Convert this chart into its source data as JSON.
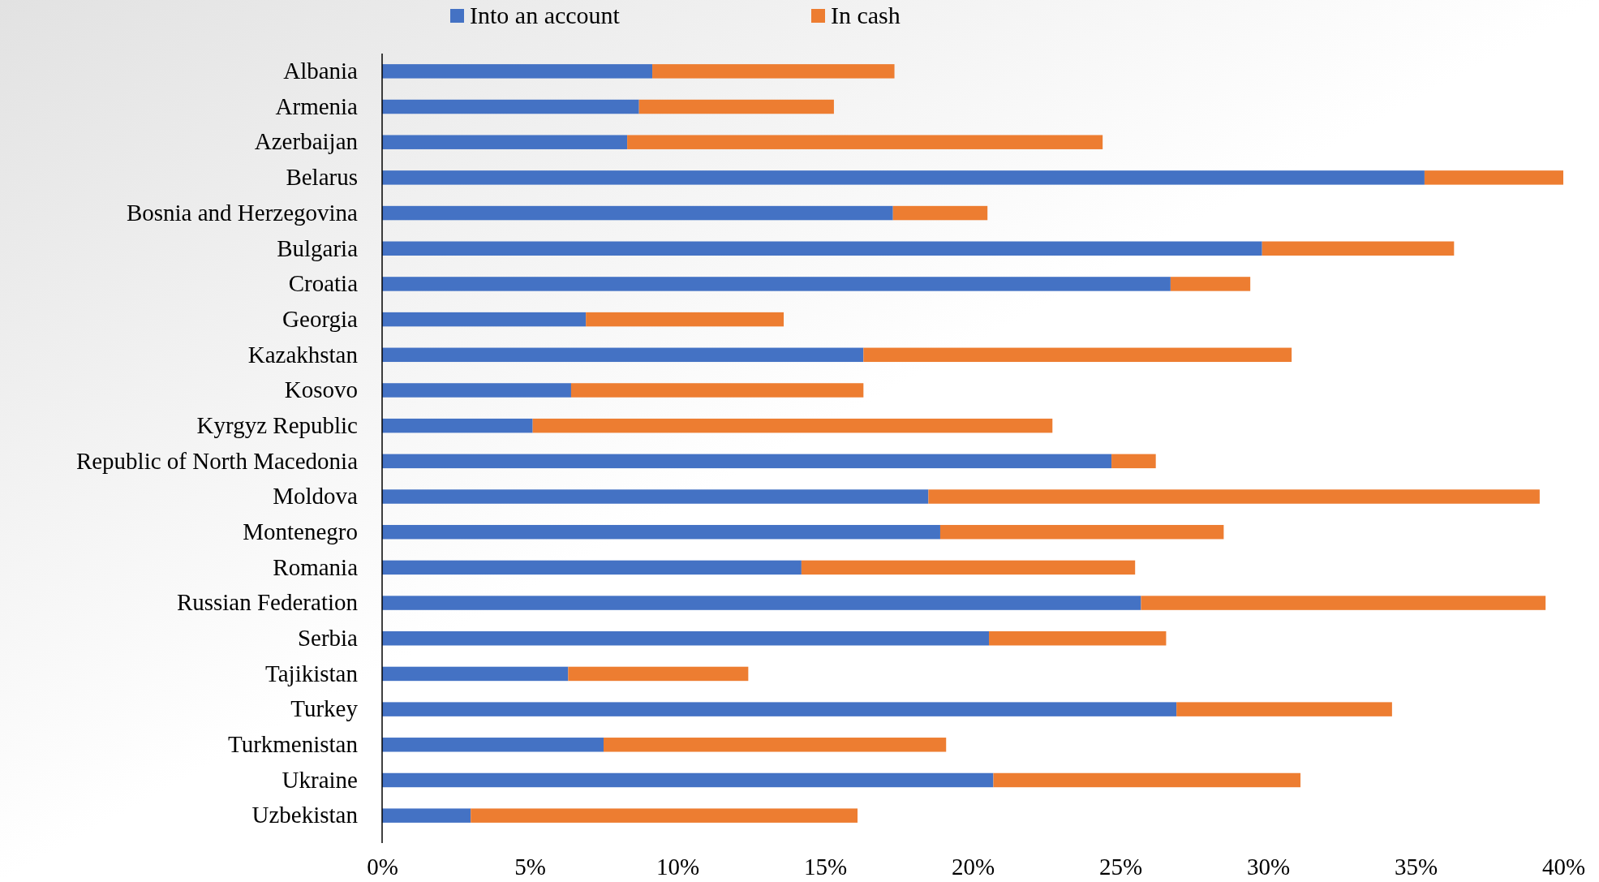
{
  "chart_data": {
    "type": "bar",
    "orientation": "horizontal",
    "stacked": true,
    "categories": [
      "Albania",
      "Armenia",
      "Azerbaijan",
      "Belarus",
      "Bosnia and Herzegovina",
      "Bulgaria",
      "Croatia",
      "Georgia",
      "Kazakhstan",
      "Kosovo",
      "Kyrgyz Republic",
      "Republic of North Macedonia",
      "Moldova",
      "Montenegro",
      "Romania",
      "Russian Federation",
      "Serbia",
      "Tajikistan",
      "Turkey",
      "Turkmenistan",
      "Ukraine",
      "Uzbekistan"
    ],
    "series": [
      {
        "name": "Into an account",
        "color": "#4472c4",
        "values": [
          9.15,
          8.7,
          8.3,
          35.3,
          17.3,
          29.8,
          26.7,
          6.9,
          16.3,
          6.4,
          5.1,
          24.7,
          18.5,
          18.9,
          14.2,
          25.7,
          20.55,
          6.3,
          26.9,
          7.5,
          20.7,
          3.0
        ]
      },
      {
        "name": "In cash",
        "color": "#ed7d31",
        "values": [
          8.2,
          6.6,
          16.1,
          4.7,
          3.2,
          6.5,
          2.7,
          6.7,
          14.5,
          9.9,
          17.6,
          1.5,
          20.7,
          9.6,
          11.3,
          13.7,
          6.0,
          6.1,
          7.3,
          11.6,
          10.4,
          13.1
        ]
      }
    ],
    "xlim": [
      0,
      40
    ],
    "xticks": [
      {
        "value": 0,
        "label": "0%"
      },
      {
        "value": 5,
        "label": "5%"
      },
      {
        "value": 10,
        "label": "10%"
      },
      {
        "value": 15,
        "label": "15%"
      },
      {
        "value": 20,
        "label": "20%"
      },
      {
        "value": 25,
        "label": "25%"
      },
      {
        "value": 30,
        "label": "30%"
      },
      {
        "value": 35,
        "label": "35%"
      },
      {
        "value": 40,
        "label": "40%"
      }
    ],
    "legend": "top",
    "grid": false
  }
}
